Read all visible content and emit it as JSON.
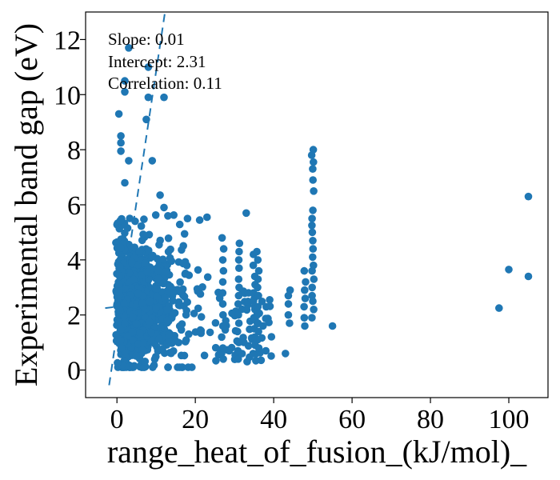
{
  "chart_data": {
    "type": "scatter",
    "xlabel": "range_heat_of_fusion_(kJ/mol)_",
    "ylabel": "Experimental band gap (eV)",
    "xlim": [
      -8,
      110
    ],
    "ylim": [
      -1,
      13
    ],
    "xticks": [
      0,
      20,
      40,
      60,
      80,
      100
    ],
    "yticks": [
      0,
      2,
      4,
      6,
      8,
      10,
      12
    ],
    "grid": false,
    "color": "#1f77b4",
    "annotations": [
      "Slope: 0.01",
      "Intercept: 2.31",
      "Correlation: 0.11"
    ],
    "fit_line": {
      "slope": 0.95,
      "intercept": 1.35,
      "style": "dashed",
      "x_range": [
        -2,
        13
      ]
    },
    "flat_segment": {
      "x": [
        -3,
        0
      ],
      "y": [
        2.25,
        2.3
      ]
    },
    "outliers": [
      [
        97.5,
        2.25
      ],
      [
        100,
        3.65
      ],
      [
        105,
        3.4
      ],
      [
        105,
        6.3
      ],
      [
        55,
        1.6
      ],
      [
        43,
        0.6
      ],
      [
        38,
        0.7
      ],
      [
        3,
        11.7
      ],
      [
        2,
        10.5
      ],
      [
        2,
        10.1
      ],
      [
        8,
        11.0
      ],
      [
        12,
        9.9
      ],
      [
        8,
        9.9
      ],
      [
        0.5,
        9.3
      ],
      [
        7.5,
        9.1
      ],
      [
        1,
        8.5
      ],
      [
        1,
        8.25
      ],
      [
        1,
        7.95
      ],
      [
        9,
        7.6
      ],
      [
        3,
        7.6
      ],
      [
        2,
        6.8
      ],
      [
        11,
        6.35
      ],
      [
        12,
        5.9
      ],
      [
        13,
        5.6
      ],
      [
        18,
        5.5
      ],
      [
        23,
        5.55
      ],
      [
        33,
        5.7
      ]
    ],
    "column_50": [
      8.0,
      7.8,
      7.55,
      7.3,
      6.9,
      6.5,
      5.8,
      5.5,
      5.25,
      5.0,
      4.7,
      4.4,
      4.1,
      3.8,
      3.6,
      3.3,
      3.0,
      2.7,
      2.5,
      2.2,
      1.9
    ],
    "column_48": [
      3.6,
      3.2,
      2.9,
      2.6,
      2.3,
      1.9,
      1.6
    ],
    "column_44": [
      2.9,
      2.7,
      2.4,
      2.0,
      1.7
    ],
    "column_36": [
      4.3,
      4.0,
      3.6,
      3.3,
      3.0,
      2.7,
      2.3,
      2.0,
      1.7,
      1.4,
      1.1,
      0.8
    ],
    "column_35": [
      4.2,
      3.8,
      3.4,
      3.1,
      2.8,
      2.5,
      2.2,
      1.9,
      1.5,
      1.2,
      0.9,
      0.6
    ],
    "column_31": [
      4.6,
      4.3,
      4.0,
      3.7,
      3.3,
      3.0,
      2.7,
      2.4,
      2.0,
      1.7,
      1.4,
      1.0,
      0.7,
      0.4
    ],
    "column_27": [
      4.8,
      4.4,
      4.0,
      3.6,
      3.2,
      2.8,
      2.4,
      2.0,
      1.6,
      1.2,
      0.8,
      0.4
    ],
    "cluster": {
      "count": 900,
      "x_range": [
        0,
        25
      ],
      "y_range": [
        0.1,
        6.5
      ],
      "seed": 7,
      "description": "dense cloud of experimental band gaps"
    }
  }
}
